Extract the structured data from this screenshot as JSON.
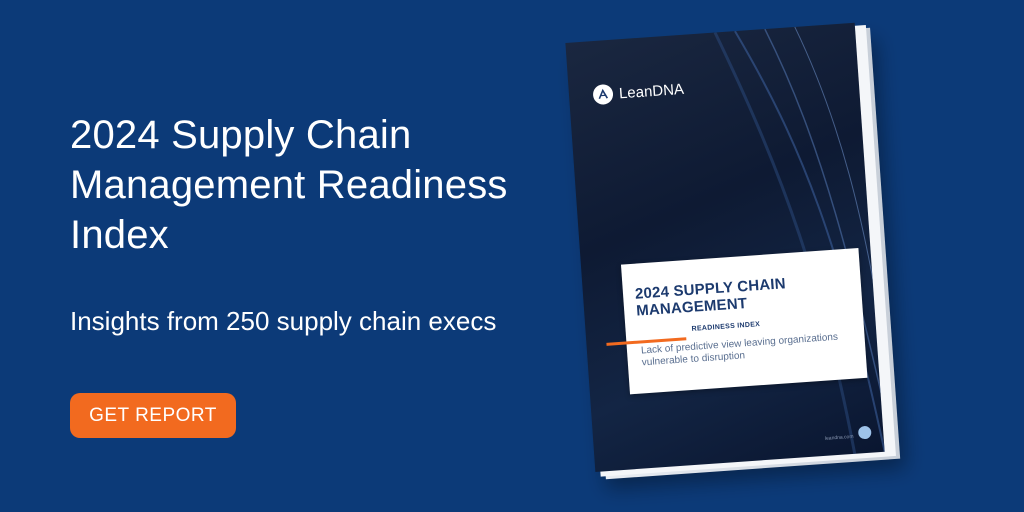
{
  "banner": {
    "headline": "2024 Supply Chain Management Readiness Index",
    "subhead": "Insights from 250 supply chain execs",
    "cta_label": "GET REPORT",
    "colors": {
      "background": "#0c3a78",
      "cta": "#f26a1f",
      "text": "#ffffff"
    }
  },
  "booklet": {
    "logo_text": "LeanDNA",
    "logo_icon": "leandna-logo-icon",
    "card_title": "2024 SUPPLY CHAIN MANAGEMENT",
    "card_tag": "READINESS INDEX",
    "card_desc": "Lack of predictive view leaving organizations vulnerable to disruption",
    "footer_url": "leandna.com",
    "colors": {
      "title": "#1c3a6e",
      "accent": "#f26a1f"
    }
  }
}
